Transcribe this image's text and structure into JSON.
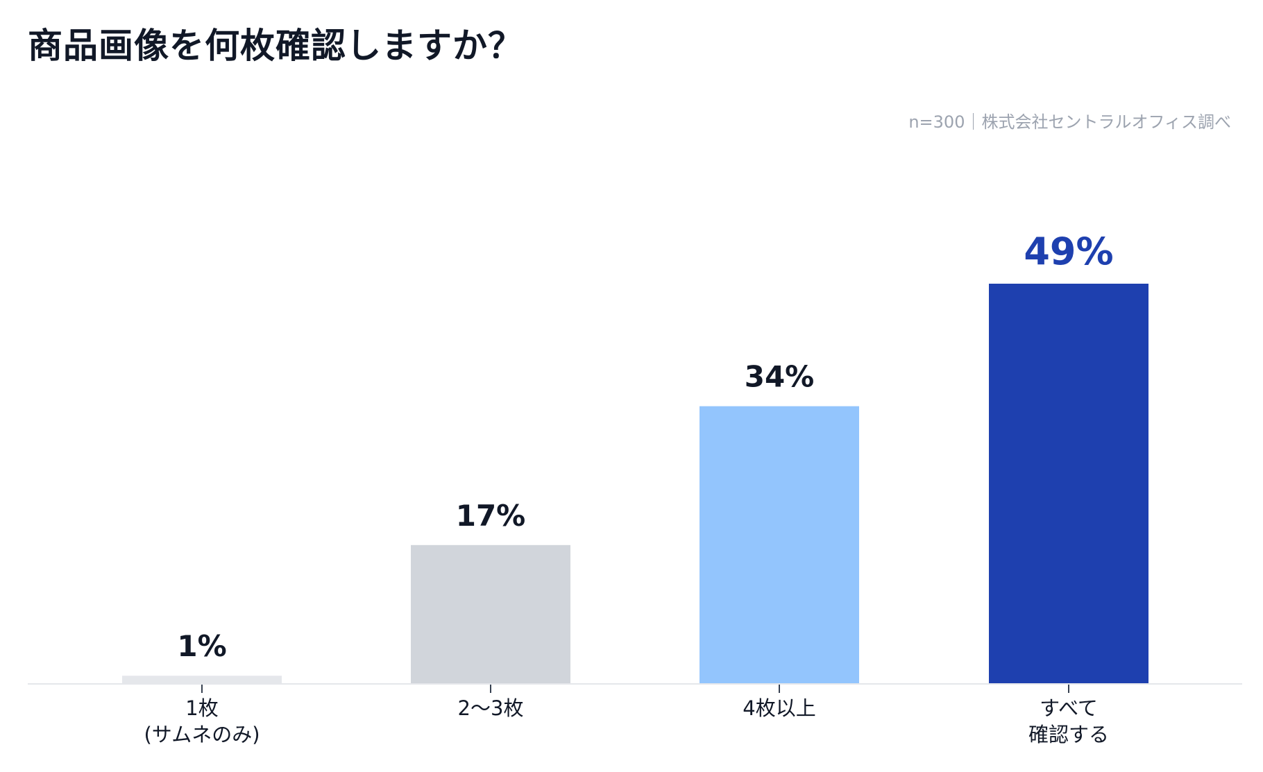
{
  "title": "商品画像を何枚確認しますか？",
  "source": "n=300｜株式会社セントラルオフィス調べ",
  "chart_data": {
    "type": "bar",
    "title": "商品画像を何枚確認しますか？",
    "xlabel": "",
    "ylabel": "",
    "ylim": [
      0,
      49
    ],
    "grid": false,
    "categories": [
      [
        "1枚",
        "(サムネのみ)"
      ],
      [
        "2〜3枚"
      ],
      [
        "4枚以上"
      ],
      [
        "すべて",
        "確認する"
      ]
    ],
    "values": [
      1,
      17,
      34,
      49
    ],
    "value_labels": [
      "1%",
      "17%",
      "34%",
      "49%"
    ],
    "bar_colors": [
      "#e5e7eb",
      "#d1d5db",
      "#93c5fd",
      "#1e40af"
    ],
    "label_colors": [
      "#111827",
      "#111827",
      "#111827",
      "#1e40af"
    ]
  }
}
